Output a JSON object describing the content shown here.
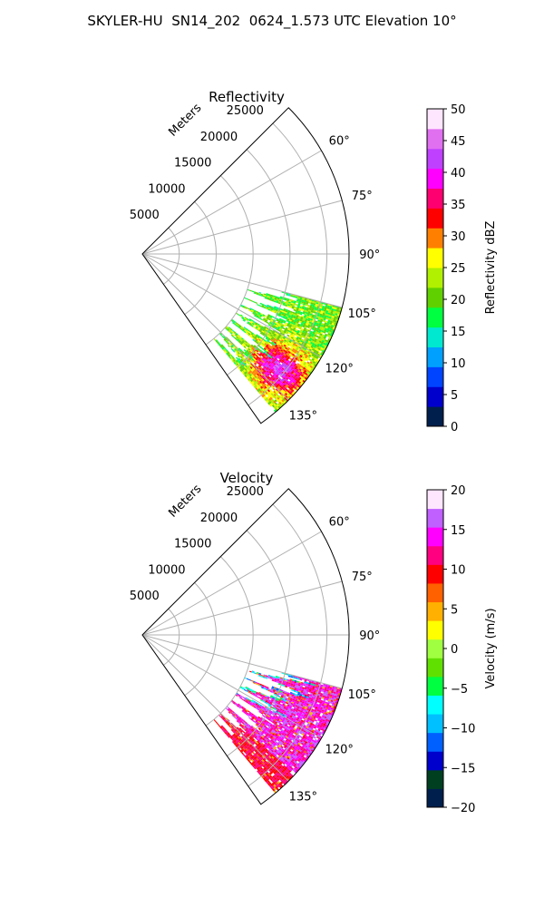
{
  "figure": {
    "title": "SKYLER-HU  SN14_202  0624_1.573 UTC Elevation 10°"
  },
  "chart_data": [
    {
      "type": "heatmap",
      "projection": "polar-sector",
      "title": "Reflectivity",
      "range_axis_label": "Meters",
      "range_ticks": [
        5000,
        10000,
        15000,
        20000,
        25000
      ],
      "range_max": 28000,
      "azimuth_range_deg": [
        45,
        145
      ],
      "azimuth_ticks": [
        60,
        75,
        90,
        105,
        120,
        135
      ],
      "azimuth_tick_labels": [
        "60°",
        "75°",
        "90°",
        "105°",
        "120°",
        "135°"
      ],
      "grid": true,
      "colorbar": {
        "label": "Reflectivity dBZ",
        "range": [
          0,
          50
        ],
        "ticks": [
          0,
          5,
          10,
          15,
          20,
          25,
          30,
          35,
          40,
          45,
          50
        ],
        "colors": [
          "#001f4d",
          "#0000cc",
          "#0044ff",
          "#00a0ff",
          "#00e8d0",
          "#00ff40",
          "#60d000",
          "#b0f000",
          "#ffff00",
          "#ff8000",
          "#ff0000",
          "#ff0070",
          "#ff00ff",
          "#c040ff",
          "#e070f0",
          "#ffe6ff"
        ]
      },
      "echo_summary": {
        "azimuth_extent_deg": [
          105,
          140
        ],
        "range_extent_m": [
          15000,
          28000
        ],
        "value_range": [
          15,
          42
        ],
        "note": "precipitation echo"
      }
    },
    {
      "type": "heatmap",
      "projection": "polar-sector",
      "title": "Velocity",
      "range_axis_label": "Meters",
      "range_ticks": [
        5000,
        10000,
        15000,
        20000,
        25000
      ],
      "range_max": 28000,
      "azimuth_range_deg": [
        45,
        145
      ],
      "azimuth_ticks": [
        60,
        75,
        90,
        105,
        120,
        135
      ],
      "azimuth_tick_labels": [
        "60°",
        "75°",
        "90°",
        "105°",
        "120°",
        "135°"
      ],
      "grid": true,
      "colorbar": {
        "label": "Velocity (m/s)",
        "range": [
          -20,
          20
        ],
        "ticks": [
          -20,
          -15,
          -10,
          -5,
          0,
          5,
          10,
          15,
          20
        ],
        "colors": [
          "#001f4d",
          "#004020",
          "#0000cc",
          "#0060ff",
          "#00c0ff",
          "#00ffff",
          "#00ff40",
          "#60e000",
          "#a0ff40",
          "#ffff00",
          "#ffb000",
          "#ff6000",
          "#ff0000",
          "#ff0080",
          "#ff00ff",
          "#c060ff",
          "#ffe6ff"
        ]
      },
      "echo_summary": {
        "azimuth_extent_deg": [
          105,
          140
        ],
        "range_extent_m": [
          15000,
          28000
        ],
        "value_range": [
          -12,
          16
        ],
        "note": "mostly positive velocities (red/magenta)"
      }
    }
  ]
}
